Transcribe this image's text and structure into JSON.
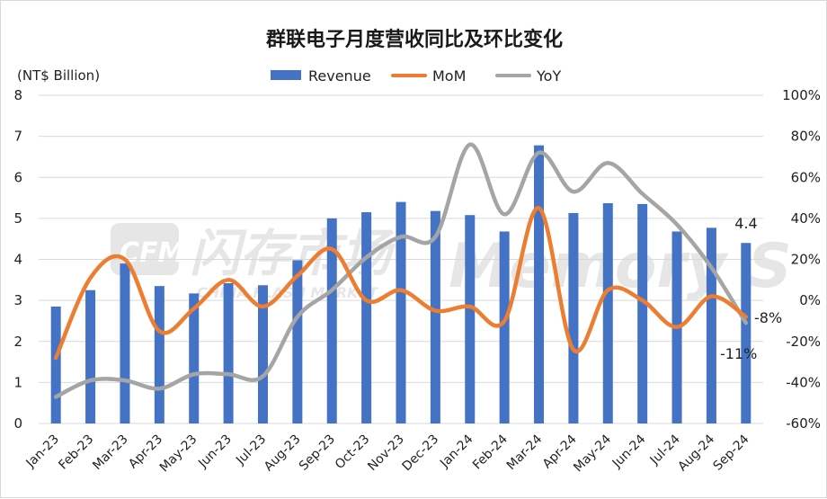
{
  "chart_data": {
    "type": "bar",
    "title": "群联电子月度营收同比及环比变化",
    "unit_label": "(NT$ Billion)",
    "categories": [
      "Jan-23",
      "Feb-23",
      "Mar-23",
      "Apr-23",
      "May-23",
      "Jun-23",
      "Jul-23",
      "Aug-23",
      "Sep-23",
      "Oct-23",
      "Nov-23",
      "Dec-23",
      "Jan-24",
      "Feb-24",
      "Mar-24",
      "Apr-24",
      "May-24",
      "Jun-24",
      "Jul-24",
      "Aug-24",
      "Sep-24"
    ],
    "series": [
      {
        "name": "Revenue",
        "type": "bar",
        "axis": "left",
        "color": "#4472C4",
        "values": [
          2.85,
          3.25,
          3.9,
          3.35,
          3.17,
          3.42,
          3.37,
          3.98,
          5.0,
          5.15,
          5.4,
          5.18,
          5.08,
          4.68,
          6.78,
          5.13,
          5.37,
          5.35,
          4.68,
          4.77,
          4.4
        ]
      },
      {
        "name": "MoM",
        "type": "line",
        "axis": "right",
        "color": "#ED7D31",
        "values": [
          -28,
          11,
          20,
          -15,
          -4,
          10,
          -3,
          12,
          25,
          0,
          5,
          -5,
          -3,
          -10,
          45,
          -24,
          5,
          0,
          -13,
          2,
          -8
        ]
      },
      {
        "name": "YoY",
        "type": "line",
        "axis": "right",
        "color": "#A5A5A5",
        "values": [
          -47,
          -39,
          -39,
          -43,
          -36,
          -36,
          -37,
          -8,
          5,
          21,
          31,
          31,
          76,
          42,
          72,
          53,
          67,
          52,
          37,
          16,
          -11
        ]
      }
    ],
    "left_axis": {
      "min": 0,
      "max": 8,
      "step": 1,
      "ticks": [
        "0",
        "1",
        "2",
        "3",
        "4",
        "5",
        "6",
        "7",
        "8"
      ]
    },
    "right_axis": {
      "min": -60,
      "max": 100,
      "step": 20,
      "ticks": [
        "-60%",
        "-40%",
        "-20%",
        "0%",
        "20%",
        "40%",
        "60%",
        "80%",
        "100%"
      ]
    },
    "legend_position": "top",
    "gridlines": true,
    "data_labels": {
      "revenue_last": "4.4",
      "mom_last": "-8%",
      "yoy_last": "-11%"
    }
  },
  "watermark": {
    "logo_text": "CFM",
    "cn_text": "闪存市场",
    "en_text": "CHINA FLASH MARKET",
    "brand_text": "Memory S"
  }
}
